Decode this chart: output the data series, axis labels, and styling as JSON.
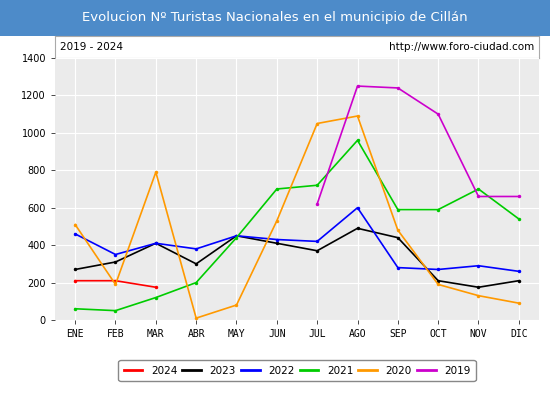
{
  "title": "Evolucion Nº Turistas Nacionales en el municipio de Cillán",
  "subtitle_left": "2019 - 2024",
  "subtitle_right": "http://www.foro-ciudad.com",
  "months": [
    "ENE",
    "FEB",
    "MAR",
    "ABR",
    "MAY",
    "JUN",
    "JUL",
    "AGO",
    "SEP",
    "OCT",
    "NOV",
    "DIC"
  ],
  "series": {
    "2024": [
      210,
      210,
      175,
      null,
      null,
      null,
      null,
      null,
      null,
      null,
      null,
      null
    ],
    "2023": [
      270,
      310,
      410,
      300,
      450,
      410,
      370,
      490,
      440,
      210,
      175,
      210
    ],
    "2022": [
      460,
      350,
      410,
      380,
      450,
      430,
      420,
      600,
      280,
      270,
      290,
      260
    ],
    "2021": [
      60,
      50,
      120,
      200,
      440,
      700,
      720,
      960,
      590,
      590,
      700,
      540
    ],
    "2020": [
      510,
      190,
      790,
      10,
      80,
      530,
      1050,
      1090,
      480,
      190,
      130,
      90
    ],
    "2019": [
      null,
      null,
      null,
      null,
      null,
      null,
      620,
      1250,
      1240,
      1100,
      660,
      660
    ]
  },
  "colors": {
    "2024": "#ff0000",
    "2023": "#000000",
    "2022": "#0000ff",
    "2021": "#00cc00",
    "2020": "#ff9900",
    "2019": "#cc00cc"
  },
  "ylim": [
    0,
    1400
  ],
  "yticks": [
    0,
    200,
    400,
    600,
    800,
    1000,
    1200,
    1400
  ],
  "title_bg_color": "#4d8bc9",
  "title_text_color": "#ffffff",
  "plot_bg_color": "#ebebeb",
  "grid_color": "#ffffff",
  "subtitle_box_color": "#ffffff",
  "subtitle_box_border": "#aaaaaa",
  "outer_bg_color": "#ffffff"
}
